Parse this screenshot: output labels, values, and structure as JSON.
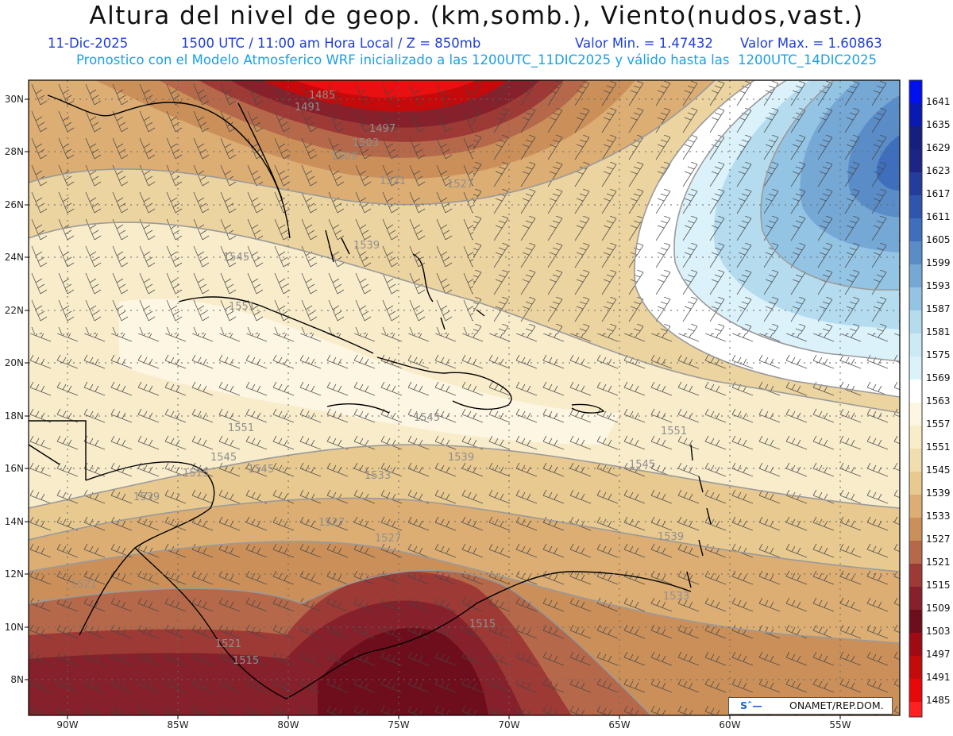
{
  "header": {
    "title": "Altura del nivel de geop. (km,somb.), Viento(nudos,vast.)",
    "date": "11-Dic-2025",
    "time_info": "1500 UTC / 11:00 am Hora Local / Z = 850mb",
    "valor_min": "Valor Min. = 1.47432",
    "valor_max": "Valor Max. = 1.60863",
    "model_info": "Pronostico con el Modelo Atmosferico WRF inicializado a las 1200UTC_11DIC2025 y válido hasta las  1200UTC_14DIC2025"
  },
  "axes": {
    "lat_labels": [
      "30N",
      "28N",
      "26N",
      "24N",
      "22N",
      "20N",
      "18N",
      "16N",
      "14N",
      "12N",
      "10N",
      "8N"
    ],
    "lon_labels": [
      "90W",
      "85W",
      "80W",
      "75W",
      "70W",
      "65W",
      "60W",
      "55W"
    ]
  },
  "colorbar": {
    "levels": [
      "1641",
      "1635",
      "1629",
      "1623",
      "1617",
      "1611",
      "1605",
      "1599",
      "1593",
      "1587",
      "1581",
      "1575",
      "1569",
      "1563",
      "1557",
      "1551",
      "1545",
      "1539",
      "1533",
      "1527",
      "1521",
      "1515",
      "1509",
      "1503",
      "1497",
      "1491",
      "1485"
    ],
    "colors": [
      "#0010ee",
      "#0a1ab0",
      "#14207e",
      "#1c2486",
      "#243c9e",
      "#2f56ae",
      "#3f6fbc",
      "#5a8cc8",
      "#76a8d6",
      "#94c4e4",
      "#b4dcee",
      "#cceaf5",
      "#dcf2fa",
      "#ffffff",
      "#fdf6e2",
      "#f8ecc9",
      "#f1ddad",
      "#e8c990",
      "#dcae74",
      "#cb905a",
      "#b5694a",
      "#9e3a36",
      "#86202a",
      "#6e0e1c",
      "#a00a14",
      "#c40a0a",
      "#e80808",
      "#ff2020"
    ]
  },
  "contour_labels": [
    "1485",
    "1491",
    "1497",
    "1503",
    "1509",
    "1521",
    "1527",
    "1539",
    "1545",
    "1551",
    "1551",
    "1545",
    "1545",
    "1539",
    "1533",
    "1527",
    "1527",
    "1521",
    "1521",
    "1515",
    "1515",
    "1539",
    "1545",
    "1551",
    "1539",
    "1533",
    "1515",
    "1545"
  ],
  "footer": {
    "logo_mark": "Sˆ—",
    "logo_text": "ONAMET/REP.DOM."
  },
  "colors": {
    "title": "#111111",
    "subtitle1": "#1f3fd8",
    "subtitle2": "#1aa0e8"
  }
}
